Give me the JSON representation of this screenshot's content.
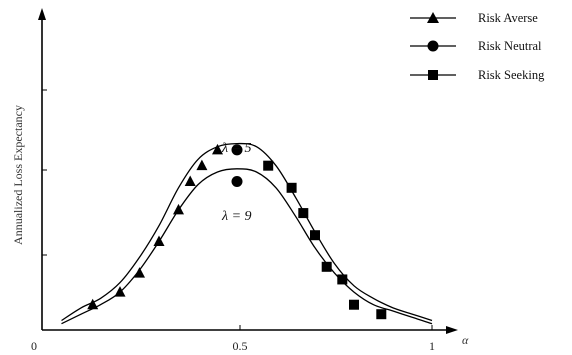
{
  "chart_data": {
    "type": "line",
    "title": "",
    "xlabel": "α",
    "ylabel": "Annualized Loss Expectancy",
    "xlim": [
      0,
      1
    ],
    "ylim": [
      0,
      1
    ],
    "x_ticks": [
      "0",
      "0.5",
      "1"
    ],
    "y_ticks_labeled": false,
    "grid": false,
    "legend_position": "top-right",
    "legend": [
      {
        "name": "Risk Averse",
        "marker": "triangle"
      },
      {
        "name": "Risk Neutral",
        "marker": "circle"
      },
      {
        "name": "Risk Seeking",
        "marker": "square"
      }
    ],
    "curve_labels": [
      {
        "text": "λ = 5",
        "series": "upper"
      },
      {
        "text": "λ = 9",
        "series": "lower"
      }
    ],
    "curves": [
      {
        "label": "λ = 5",
        "x": [
          0.05,
          0.1,
          0.15,
          0.2,
          0.25,
          0.3,
          0.35,
          0.4,
          0.45,
          0.5,
          0.55,
          0.6,
          0.65,
          0.7,
          0.75,
          0.8,
          0.85,
          0.9,
          0.95,
          1.0
        ],
        "y": [
          0.03,
          0.07,
          0.1,
          0.15,
          0.23,
          0.33,
          0.45,
          0.54,
          0.58,
          0.59,
          0.58,
          0.52,
          0.42,
          0.31,
          0.21,
          0.14,
          0.1,
          0.07,
          0.05,
          0.03
        ]
      },
      {
        "label": "λ = 9",
        "x": [
          0.05,
          0.1,
          0.15,
          0.2,
          0.25,
          0.3,
          0.35,
          0.4,
          0.45,
          0.5,
          0.55,
          0.6,
          0.65,
          0.7,
          0.75,
          0.8,
          0.85,
          0.9,
          0.95,
          1.0
        ],
        "y": [
          0.02,
          0.05,
          0.08,
          0.12,
          0.19,
          0.28,
          0.38,
          0.46,
          0.5,
          0.51,
          0.5,
          0.45,
          0.36,
          0.26,
          0.18,
          0.12,
          0.08,
          0.06,
          0.04,
          0.02
        ]
      }
    ],
    "series": [
      {
        "name": "Risk Averse",
        "marker": "triangle",
        "points": [
          [
            0.13,
            0.08
          ],
          [
            0.2,
            0.12
          ],
          [
            0.25,
            0.18
          ],
          [
            0.3,
            0.28
          ],
          [
            0.35,
            0.38
          ],
          [
            0.38,
            0.47
          ],
          [
            0.41,
            0.52
          ],
          [
            0.45,
            0.57
          ]
        ]
      },
      {
        "name": "Risk Neutral",
        "marker": "circle",
        "points": [
          [
            0.5,
            0.47
          ],
          [
            0.5,
            0.57
          ]
        ]
      },
      {
        "name": "Risk Seeking",
        "marker": "square",
        "points": [
          [
            0.58,
            0.52
          ],
          [
            0.64,
            0.45
          ],
          [
            0.67,
            0.37
          ],
          [
            0.7,
            0.3
          ],
          [
            0.73,
            0.2
          ],
          [
            0.77,
            0.16
          ],
          [
            0.8,
            0.08
          ],
          [
            0.87,
            0.05
          ]
        ]
      }
    ]
  }
}
